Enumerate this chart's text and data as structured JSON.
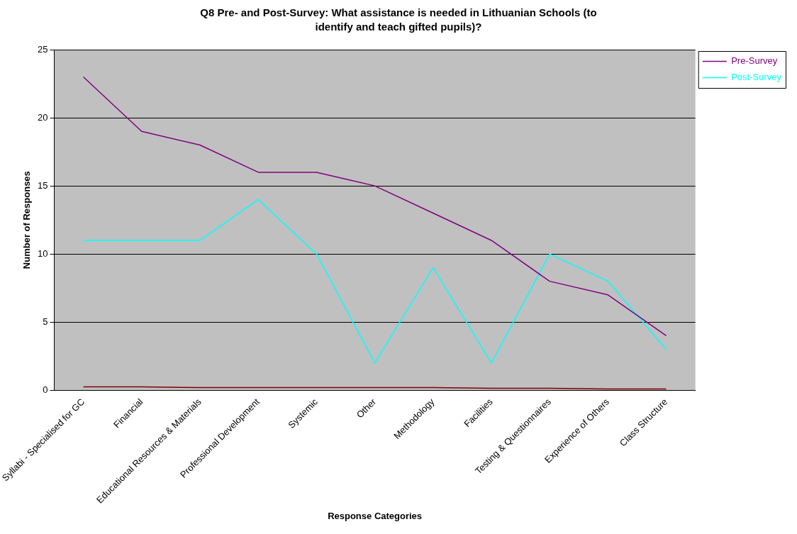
{
  "chart_data": {
    "type": "line",
    "title": "Q8 Pre- and Post-Survey: What assistance is needed in Lithuanian Schools (to identify and teach gifted pupils)?",
    "xlabel": "Response Categories",
    "ylabel": "Number of Responses",
    "categories": [
      "Syllabi - Specialised for GC",
      "Financial",
      "Educational Resources & Materials",
      "Professional Development",
      "Systemic",
      "Other",
      "Methodology",
      "Facilities",
      "Testing & Questionnaires",
      "Experience of Others",
      "Class Structure"
    ],
    "series": [
      {
        "name": "Pre-Survey",
        "color": "#800080",
        "values": [
          23,
          19,
          18,
          16,
          16,
          15,
          13,
          11,
          8,
          7,
          4
        ]
      },
      {
        "name": "Post-Survey",
        "color": "#00ffff",
        "values": [
          11,
          11,
          11,
          14,
          10,
          2,
          9,
          2,
          10,
          8,
          3
        ]
      },
      {
        "color": "#800000",
        "values": [
          0.25,
          0.25,
          0.2,
          0.2,
          0.2,
          0.2,
          0.2,
          0.15,
          0.15,
          0.1,
          0.1
        ]
      }
    ],
    "ylim": [
      0,
      25
    ],
    "yticks": [
      0,
      5,
      10,
      15,
      20,
      25
    ],
    "grid": "y",
    "legend": "top right",
    "marker": "none",
    "line_style": "solid"
  }
}
